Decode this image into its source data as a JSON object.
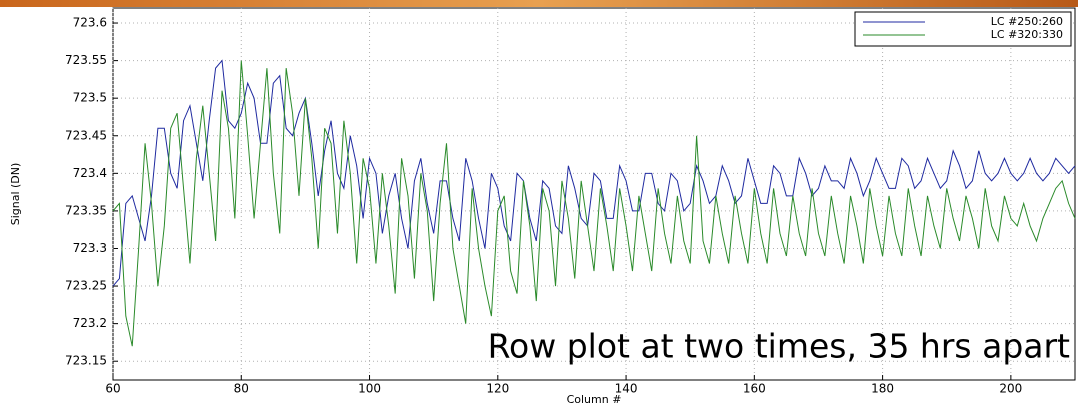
{
  "chart_data": {
    "type": "line",
    "annotation": "Row plot at two times, 35 hrs apart",
    "x_label": "Column #",
    "y_label": "Signal (DN)",
    "xlim": [
      60,
      210
    ],
    "ylim": [
      723.125,
      723.62
    ],
    "xticks": [
      60,
      80,
      100,
      120,
      140,
      160,
      180,
      200
    ],
    "yticks": [
      723.15,
      723.2,
      723.25,
      723.3,
      723.35,
      723.4,
      723.45,
      723.5,
      723.55,
      723.6
    ],
    "grid": true,
    "legend": "upper right",
    "x": [
      60,
      61,
      62,
      63,
      64,
      65,
      66,
      67,
      68,
      69,
      70,
      71,
      72,
      73,
      74,
      75,
      76,
      77,
      78,
      79,
      80,
      81,
      82,
      83,
      84,
      85,
      86,
      87,
      88,
      89,
      90,
      91,
      92,
      93,
      94,
      95,
      96,
      97,
      98,
      99,
      100,
      101,
      102,
      103,
      104,
      105,
      106,
      107,
      108,
      109,
      110,
      111,
      112,
      113,
      114,
      115,
      116,
      117,
      118,
      119,
      120,
      121,
      122,
      123,
      124,
      125,
      126,
      127,
      128,
      129,
      130,
      131,
      132,
      133,
      134,
      135,
      136,
      137,
      138,
      139,
      140,
      141,
      142,
      143,
      144,
      145,
      146,
      147,
      148,
      149,
      150,
      151,
      152,
      153,
      154,
      155,
      156,
      157,
      158,
      159,
      160,
      161,
      162,
      163,
      164,
      165,
      166,
      167,
      168,
      169,
      170,
      171,
      172,
      173,
      174,
      175,
      176,
      177,
      178,
      179,
      180,
      181,
      182,
      183,
      184,
      185,
      186,
      187,
      188,
      189,
      190,
      191,
      192,
      193,
      194,
      195,
      196,
      197,
      198,
      199,
      200,
      201,
      202,
      203,
      204,
      205,
      206,
      207,
      208,
      209,
      210
    ],
    "series": [
      {
        "name": "LC #250:260",
        "color": "#1f2aa0",
        "values": [
          723.25,
          723.26,
          723.36,
          723.37,
          723.34,
          723.31,
          723.37,
          723.46,
          723.46,
          723.4,
          723.38,
          723.47,
          723.49,
          723.44,
          723.39,
          723.47,
          723.54,
          723.55,
          723.47,
          723.46,
          723.48,
          723.52,
          723.5,
          723.44,
          723.44,
          723.52,
          723.53,
          723.46,
          723.45,
          723.48,
          723.5,
          723.44,
          723.37,
          723.43,
          723.47,
          723.4,
          723.38,
          723.45,
          723.41,
          723.34,
          723.42,
          723.4,
          723.32,
          723.37,
          723.4,
          723.34,
          723.3,
          723.39,
          723.42,
          723.36,
          723.32,
          723.39,
          723.39,
          723.34,
          723.31,
          723.42,
          723.39,
          723.34,
          723.3,
          723.4,
          723.38,
          723.33,
          723.31,
          723.4,
          723.39,
          723.34,
          723.31,
          723.39,
          723.38,
          723.33,
          723.32,
          723.41,
          723.38,
          723.34,
          723.33,
          723.4,
          723.39,
          723.34,
          723.34,
          723.41,
          723.39,
          723.35,
          723.35,
          723.4,
          723.4,
          723.36,
          723.35,
          723.4,
          723.39,
          723.35,
          723.36,
          723.41,
          723.39,
          723.36,
          723.37,
          723.41,
          723.39,
          723.36,
          723.37,
          723.42,
          723.39,
          723.36,
          723.36,
          723.41,
          723.4,
          723.37,
          723.37,
          723.42,
          723.4,
          723.37,
          723.38,
          723.41,
          723.39,
          723.39,
          723.38,
          723.42,
          723.4,
          723.37,
          723.39,
          723.42,
          723.4,
          723.38,
          723.38,
          723.42,
          723.41,
          723.38,
          723.39,
          723.42,
          723.4,
          723.38,
          723.39,
          723.43,
          723.41,
          723.38,
          723.39,
          723.43,
          723.4,
          723.39,
          723.4,
          723.42,
          723.4,
          723.39,
          723.4,
          723.42,
          723.4,
          723.39,
          723.4,
          723.42,
          723.41,
          723.4,
          723.41
        ]
      },
      {
        "name": "LC #320:330",
        "color": "#2a8a2a",
        "values": [
          723.35,
          723.36,
          723.21,
          723.17,
          723.3,
          723.44,
          723.36,
          723.25,
          723.33,
          723.46,
          723.48,
          723.38,
          723.28,
          723.42,
          723.49,
          723.4,
          723.31,
          723.51,
          723.46,
          723.34,
          723.55,
          723.45,
          723.34,
          723.44,
          723.54,
          723.4,
          723.32,
          723.54,
          723.48,
          723.37,
          723.5,
          723.42,
          723.3,
          723.46,
          723.44,
          723.32,
          723.47,
          723.4,
          723.28,
          723.42,
          723.38,
          723.28,
          723.4,
          723.33,
          723.24,
          723.42,
          723.37,
          723.26,
          723.4,
          723.35,
          723.23,
          723.36,
          723.44,
          723.3,
          723.25,
          723.2,
          723.38,
          723.3,
          723.25,
          723.21,
          723.35,
          723.37,
          723.27,
          723.24,
          723.39,
          723.33,
          723.23,
          723.38,
          723.35,
          723.25,
          723.39,
          723.34,
          723.26,
          723.39,
          723.33,
          723.27,
          723.38,
          723.33,
          723.27,
          723.38,
          723.33,
          723.27,
          723.37,
          723.32,
          723.27,
          723.38,
          723.32,
          723.28,
          723.37,
          723.31,
          723.28,
          723.45,
          723.31,
          723.28,
          723.37,
          723.32,
          723.28,
          723.37,
          723.32,
          723.28,
          723.38,
          723.32,
          723.28,
          723.38,
          723.32,
          723.29,
          723.37,
          723.32,
          723.29,
          723.38,
          723.32,
          723.29,
          723.37,
          723.32,
          723.28,
          723.37,
          723.33,
          723.28,
          723.38,
          723.33,
          723.29,
          723.37,
          723.32,
          723.29,
          723.38,
          723.33,
          723.29,
          723.37,
          723.33,
          723.3,
          723.38,
          723.34,
          723.31,
          723.37,
          723.34,
          723.3,
          723.38,
          723.33,
          723.31,
          723.37,
          723.34,
          723.33,
          723.36,
          723.33,
          723.31,
          723.34,
          723.36,
          723.38,
          723.39,
          723.36,
          723.34
        ]
      }
    ]
  }
}
